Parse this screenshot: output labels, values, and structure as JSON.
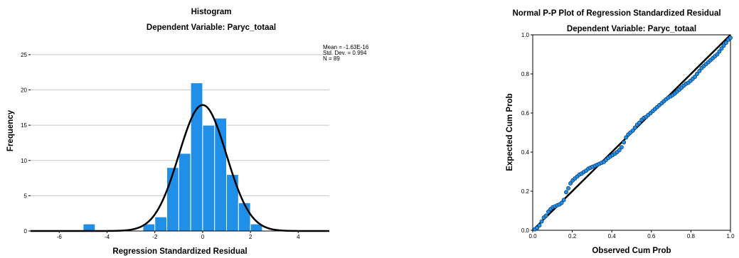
{
  "chart_data": [
    {
      "type": "histogram",
      "title": "Histogram",
      "subtitle": "Dependent Variable: Paryc_totaal",
      "xlabel": "Regression Standardized Residual",
      "ylabel": "Frequency",
      "xlim": [
        -7.2,
        5.3
      ],
      "ylim": [
        0,
        26.5
      ],
      "x_ticks": [
        -6,
        -4,
        -2,
        0,
        2,
        4
      ],
      "x_tick_labels": [
        "-6",
        "-4",
        "-2",
        "0",
        "2",
        "4"
      ],
      "y_ticks": [
        0,
        5,
        10,
        15,
        20,
        25
      ],
      "y_tick_labels": [
        "0",
        "5",
        "10",
        "15",
        "20",
        "25"
      ],
      "grid": true,
      "bin_width": 0.5,
      "bins": [
        {
          "start": -5.0,
          "count": 1
        },
        {
          "start": -2.5,
          "count": 1
        },
        {
          "start": -2.0,
          "count": 2
        },
        {
          "start": -1.5,
          "count": 9
        },
        {
          "start": -1.0,
          "count": 11
        },
        {
          "start": -0.5,
          "count": 21
        },
        {
          "start": 0.0,
          "count": 15
        },
        {
          "start": 0.5,
          "count": 16
        },
        {
          "start": 1.0,
          "count": 8
        },
        {
          "start": 1.5,
          "count": 4
        },
        {
          "start": 2.0,
          "count": 1
        }
      ],
      "stats": [
        "Mean = -1.63E-16",
        "Std. Dev. = 0.994",
        "N = 89"
      ],
      "normal_curve": {
        "mean": 0,
        "sd": 0.994,
        "n": 89
      },
      "colors": {
        "bar": "#1f8fe8",
        "bar_edge": "#ffffff",
        "curve": "#000000",
        "grid": "#c8c8c8"
      }
    },
    {
      "type": "scatter",
      "title": "Normal P-P Plot of Regression Standardized Residual",
      "subtitle": "Dependent Variable: Paryc_totaal",
      "xlabel": "Observed Cum Prob",
      "ylabel": "Expected Cum Prob",
      "xlim": [
        0,
        1
      ],
      "ylim": [
        0,
        1
      ],
      "x_ticks": [
        0,
        0.2,
        0.4,
        0.6,
        0.8,
        1.0
      ],
      "x_tick_labels": [
        "0.0",
        "0.2",
        "0.4",
        "0.6",
        "0.8",
        "1.0"
      ],
      "y_ticks": [
        0,
        0.2,
        0.4,
        0.6,
        0.8,
        1.0
      ],
      "y_tick_labels": [
        "0.0",
        "0.2",
        "0.4",
        "0.6",
        "0.8",
        "1.0"
      ],
      "reference_line": [
        [
          0,
          0
        ],
        [
          1,
          1
        ]
      ],
      "points": [
        [
          0.011,
          0.005
        ],
        [
          0.022,
          0.012
        ],
        [
          0.034,
          0.025
        ],
        [
          0.045,
          0.045
        ],
        [
          0.056,
          0.065
        ],
        [
          0.067,
          0.075
        ],
        [
          0.079,
          0.095
        ],
        [
          0.09,
          0.108
        ],
        [
          0.101,
          0.118
        ],
        [
          0.112,
          0.122
        ],
        [
          0.124,
          0.128
        ],
        [
          0.135,
          0.132
        ],
        [
          0.146,
          0.14
        ],
        [
          0.157,
          0.155
        ],
        [
          0.169,
          0.195
        ],
        [
          0.18,
          0.215
        ],
        [
          0.191,
          0.24
        ],
        [
          0.202,
          0.255
        ],
        [
          0.213,
          0.265
        ],
        [
          0.225,
          0.275
        ],
        [
          0.236,
          0.285
        ],
        [
          0.247,
          0.29
        ],
        [
          0.258,
          0.298
        ],
        [
          0.27,
          0.305
        ],
        [
          0.281,
          0.315
        ],
        [
          0.292,
          0.32
        ],
        [
          0.303,
          0.325
        ],
        [
          0.315,
          0.33
        ],
        [
          0.326,
          0.335
        ],
        [
          0.337,
          0.34
        ],
        [
          0.348,
          0.345
        ],
        [
          0.36,
          0.35
        ],
        [
          0.371,
          0.36
        ],
        [
          0.382,
          0.37
        ],
        [
          0.393,
          0.378
        ],
        [
          0.404,
          0.385
        ],
        [
          0.416,
          0.392
        ],
        [
          0.427,
          0.4
        ],
        [
          0.438,
          0.41
        ],
        [
          0.449,
          0.425
        ],
        [
          0.461,
          0.45
        ],
        [
          0.472,
          0.475
        ],
        [
          0.483,
          0.49
        ],
        [
          0.494,
          0.5
        ],
        [
          0.506,
          0.51
        ],
        [
          0.517,
          0.525
        ],
        [
          0.528,
          0.54
        ],
        [
          0.539,
          0.55
        ],
        [
          0.551,
          0.565
        ],
        [
          0.562,
          0.575
        ],
        [
          0.573,
          0.58
        ],
        [
          0.584,
          0.59
        ],
        [
          0.596,
          0.6
        ],
        [
          0.607,
          0.61
        ],
        [
          0.618,
          0.62
        ],
        [
          0.629,
          0.63
        ],
        [
          0.64,
          0.64
        ],
        [
          0.652,
          0.65
        ],
        [
          0.663,
          0.66
        ],
        [
          0.674,
          0.67
        ],
        [
          0.685,
          0.678
        ],
        [
          0.697,
          0.685
        ],
        [
          0.708,
          0.692
        ],
        [
          0.719,
          0.7
        ],
        [
          0.73,
          0.71
        ],
        [
          0.742,
          0.72
        ],
        [
          0.753,
          0.73
        ],
        [
          0.764,
          0.74
        ],
        [
          0.775,
          0.75
        ],
        [
          0.787,
          0.755
        ],
        [
          0.798,
          0.765
        ],
        [
          0.809,
          0.775
        ],
        [
          0.82,
          0.785
        ],
        [
          0.831,
          0.8
        ],
        [
          0.843,
          0.815
        ],
        [
          0.854,
          0.83
        ],
        [
          0.865,
          0.84
        ],
        [
          0.876,
          0.85
        ],
        [
          0.888,
          0.86
        ],
        [
          0.899,
          0.87
        ],
        [
          0.91,
          0.88
        ],
        [
          0.921,
          0.89
        ],
        [
          0.933,
          0.9
        ],
        [
          0.944,
          0.915
        ],
        [
          0.955,
          0.93
        ],
        [
          0.966,
          0.945
        ],
        [
          0.978,
          0.96
        ],
        [
          0.989,
          0.975
        ],
        [
          1.0,
          0.985
        ]
      ],
      "colors": {
        "point": "#1f8fe8",
        "point_edge": "#0a3a66",
        "line": "#000000"
      }
    }
  ]
}
